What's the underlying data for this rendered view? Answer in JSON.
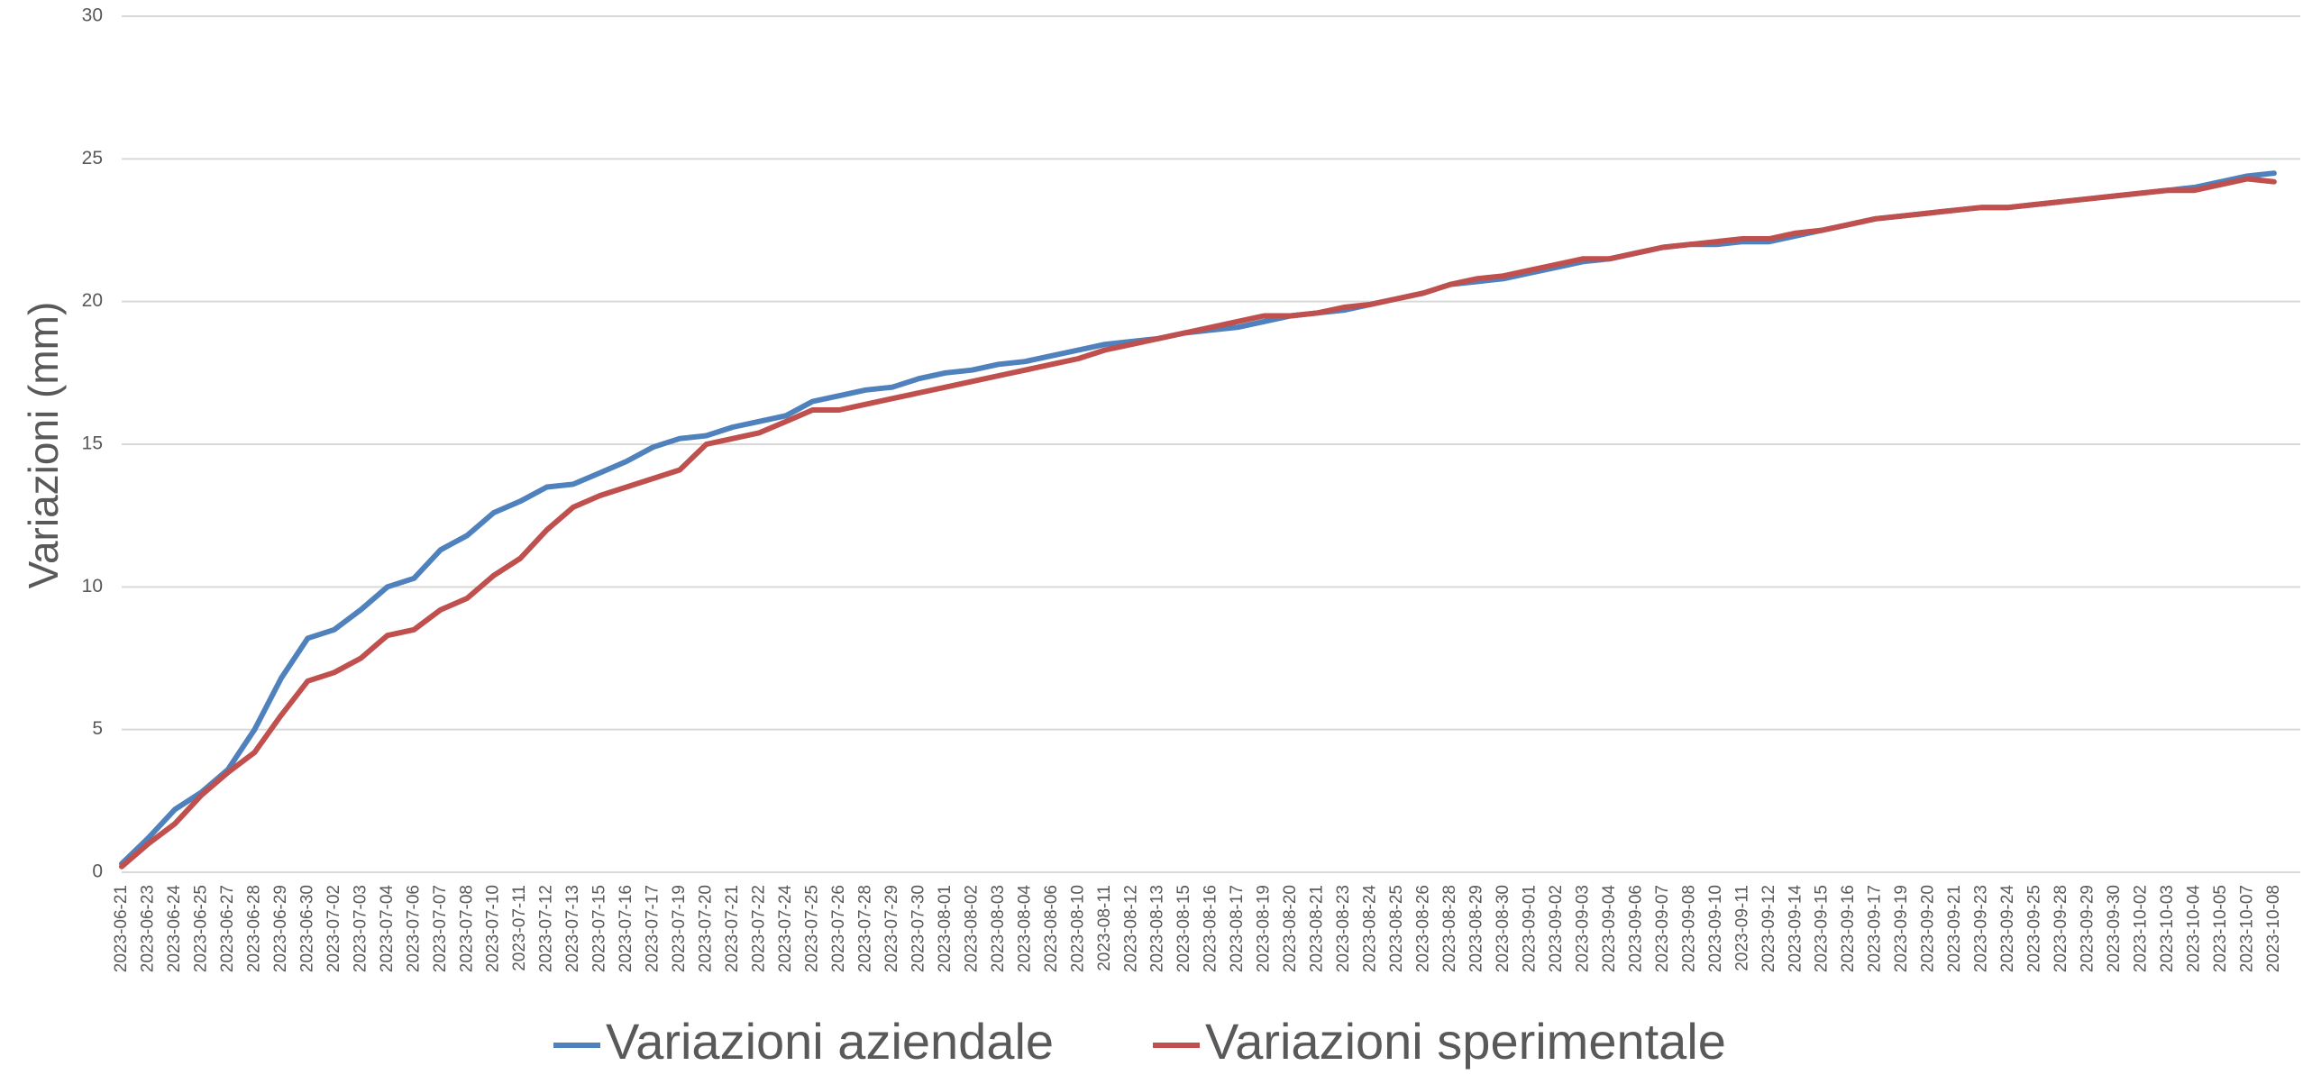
{
  "chart_data": {
    "type": "line",
    "y_label": "Variazioni (mm)",
    "categories": [
      "2023-06-21",
      "2023-06-23",
      "2023-06-24",
      "2023-06-25",
      "2023-06-27",
      "2023-06-28",
      "2023-06-29",
      "2023-06-30",
      "2023-07-02",
      "2023-07-03",
      "2023-07-04",
      "2023-07-06",
      "2023-07-07",
      "2023-07-08",
      "2023-07-10",
      "2023-07-11",
      "2023-07-12",
      "2023-07-13",
      "2023-07-15",
      "2023-07-16",
      "2023-07-17",
      "2023-07-19",
      "2023-07-20",
      "2023-07-21",
      "2023-07-22",
      "2023-07-24",
      "2023-07-25",
      "2023-07-26",
      "2023-07-28",
      "2023-07-29",
      "2023-07-30",
      "2023-08-01",
      "2023-08-02",
      "2023-08-03",
      "2023-08-04",
      "2023-08-06",
      "2023-08-10",
      "2023-08-11",
      "2023-08-12",
      "2023-08-13",
      "2023-08-15",
      "2023-08-16",
      "2023-08-17",
      "2023-08-19",
      "2023-08-20",
      "2023-08-21",
      "2023-08-23",
      "2023-08-24",
      "2023-08-25",
      "2023-08-26",
      "2023-08-28",
      "2023-08-29",
      "2023-08-30",
      "2023-09-01",
      "2023-09-02",
      "2023-09-03",
      "2023-09-04",
      "2023-09-06",
      "2023-09-07",
      "2023-09-08",
      "2023-09-10",
      "2023-09-11",
      "2023-09-12",
      "2023-09-14",
      "2023-09-15",
      "2023-09-16",
      "2023-09-17",
      "2023-09-19",
      "2023-09-20",
      "2023-09-21",
      "2023-09-23",
      "2023-09-24",
      "2023-09-25",
      "2023-09-28",
      "2023-09-29",
      "2023-09-30",
      "2023-10-02",
      "2023-10-03",
      "2023-10-04",
      "2023-10-05",
      "2023-10-07",
      "2023-10-08"
    ],
    "series": [
      {
        "name": "Variazioni aziendale",
        "color": "#4f81bd",
        "values": [
          0.3,
          1.2,
          2.2,
          2.8,
          3.6,
          5.0,
          6.8,
          8.2,
          8.5,
          9.2,
          10.0,
          10.3,
          11.3,
          11.8,
          12.6,
          13.0,
          13.5,
          13.6,
          14.0,
          14.4,
          14.9,
          15.2,
          15.3,
          15.6,
          15.8,
          16.0,
          16.5,
          16.7,
          16.9,
          17.0,
          17.3,
          17.5,
          17.6,
          17.8,
          17.9,
          18.1,
          18.3,
          18.5,
          18.6,
          18.7,
          18.9,
          19.0,
          19.1,
          19.3,
          19.5,
          19.6,
          19.7,
          19.9,
          20.1,
          20.3,
          20.6,
          20.7,
          20.8,
          21.0,
          21.2,
          21.4,
          21.5,
          21.7,
          21.9,
          22.0,
          22.0,
          22.1,
          22.1,
          22.3,
          22.5,
          22.7,
          22.9,
          23.0,
          23.1,
          23.2,
          23.3,
          23.3,
          23.4,
          23.5,
          23.6,
          23.7,
          23.8,
          23.9,
          24.0,
          24.2,
          24.4,
          24.5
        ]
      },
      {
        "name": "Variazioni sperimentale",
        "color": "#c0504d",
        "values": [
          0.2,
          1.0,
          1.7,
          2.7,
          3.5,
          4.2,
          5.5,
          6.7,
          7.0,
          7.5,
          8.3,
          8.5,
          9.2,
          9.6,
          10.4,
          11.0,
          12.0,
          12.8,
          13.2,
          13.5,
          13.8,
          14.1,
          15.0,
          15.2,
          15.4,
          15.8,
          16.2,
          16.2,
          16.4,
          16.6,
          16.8,
          17.0,
          17.2,
          17.4,
          17.6,
          17.8,
          18.0,
          18.3,
          18.5,
          18.7,
          18.9,
          19.1,
          19.3,
          19.5,
          19.5,
          19.6,
          19.8,
          19.9,
          20.1,
          20.3,
          20.6,
          20.8,
          20.9,
          21.1,
          21.3,
          21.5,
          21.5,
          21.7,
          21.9,
          22.0,
          22.1,
          22.2,
          22.2,
          22.4,
          22.5,
          22.7,
          22.9,
          23.0,
          23.1,
          23.2,
          23.3,
          23.3,
          23.4,
          23.5,
          23.6,
          23.7,
          23.8,
          23.9,
          23.9,
          24.1,
          24.3,
          24.2
        ]
      }
    ],
    "ylim": [
      0,
      30
    ],
    "yticks": [
      0,
      5,
      10,
      15,
      20,
      25,
      30
    ],
    "grid": true,
    "legend": "bottom"
  }
}
